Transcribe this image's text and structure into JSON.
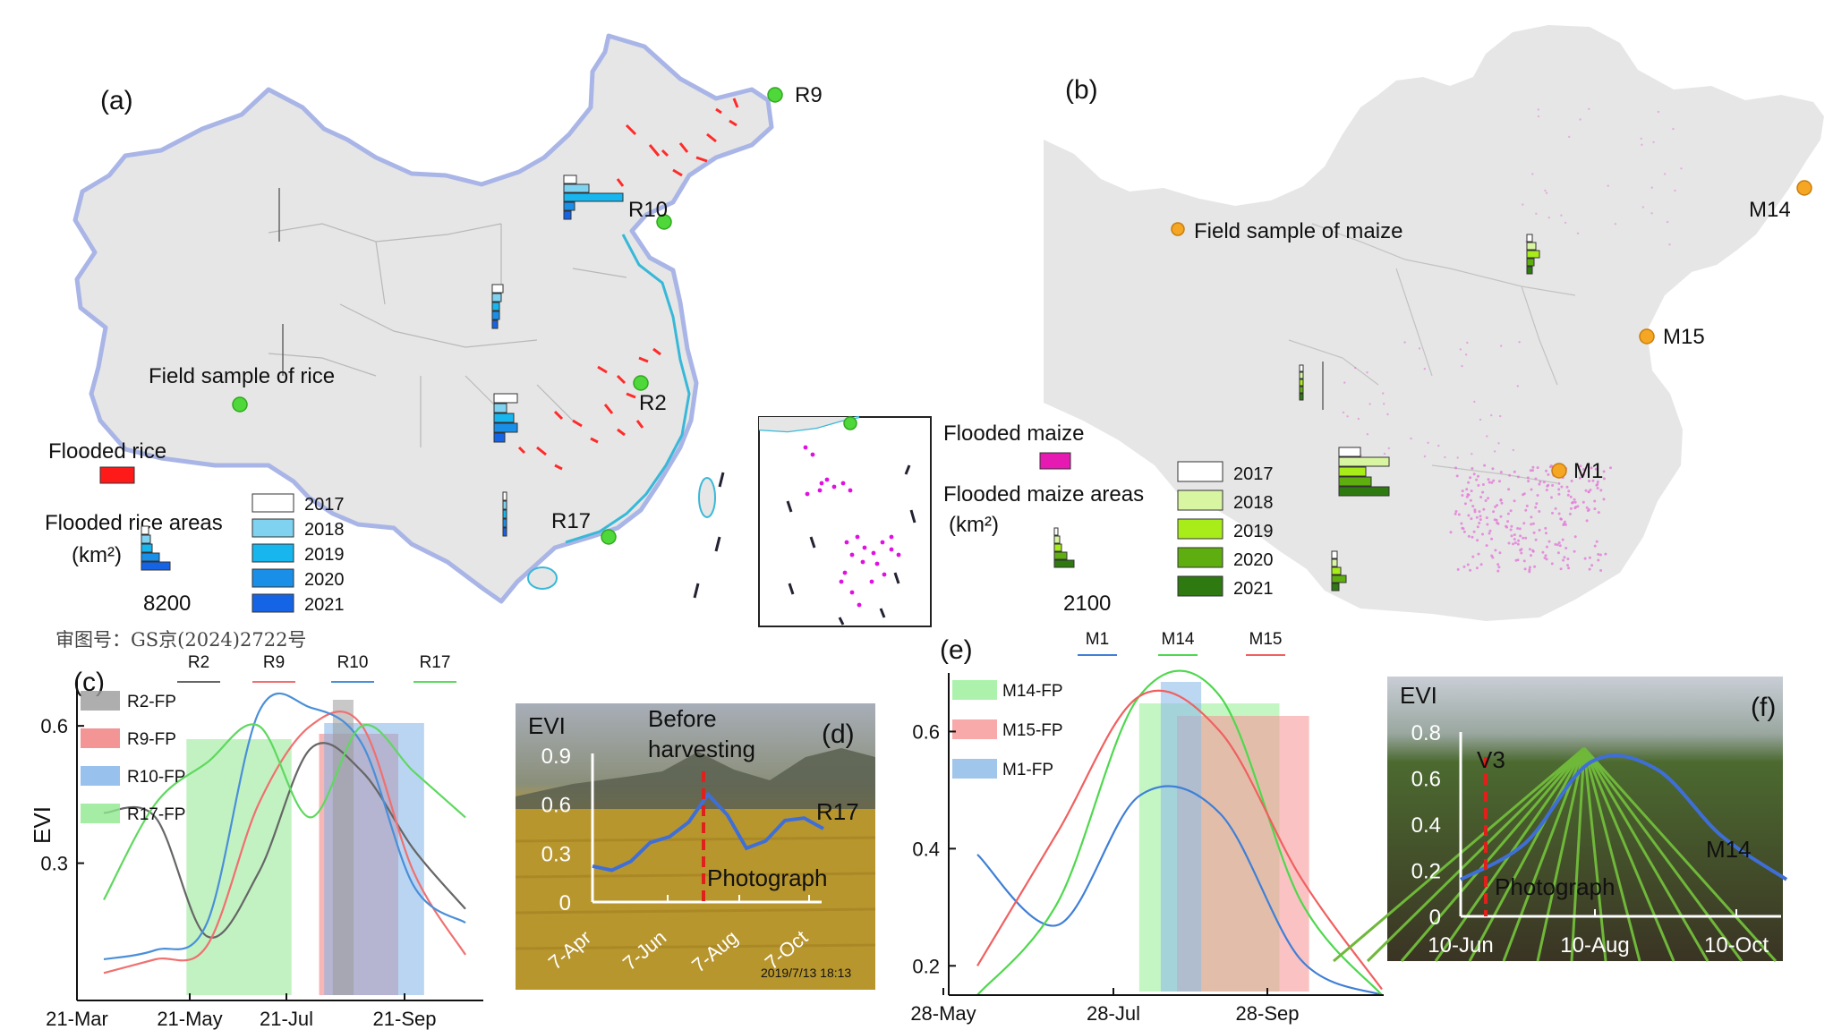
{
  "panel_a": {
    "label": "(a)",
    "sites": [
      "R9",
      "R10",
      "R2",
      "R17"
    ],
    "field_sample": "Field sample of rice",
    "legend_flooded": "Flooded rice",
    "legend_areas": "Flooded rice areas",
    "legend_unit": "(km²)",
    "scale_value": "8200",
    "years": [
      "2017",
      "2018",
      "2019",
      "2020",
      "2021"
    ],
    "year_colors": [
      "#ffffff",
      "#7fd3f0",
      "#17b6ef",
      "#1a8fe8",
      "#1564e6"
    ],
    "approval": "审图号：GS京(2024)2722号",
    "flooded_color": "#ff1a1a"
  },
  "panel_b": {
    "label": "(b)",
    "sites": [
      "M14",
      "M15",
      "M1"
    ],
    "field_sample": "Field sample of maize",
    "legend_flooded": "Flooded maize",
    "legend_areas": "Flooded maize areas",
    "legend_unit": "(km²)",
    "scale_value": "2100",
    "years": [
      "2017",
      "2018",
      "2019",
      "2020",
      "2021"
    ],
    "year_colors": [
      "#ffffff",
      "#d8f5a2",
      "#a8ec1a",
      "#5fae10",
      "#2e7a10"
    ],
    "flooded_color": "#e619b3"
  },
  "panel_c": {
    "label": "(c)",
    "ylabel": "EVI",
    "yticks": [
      "0.3",
      "0.6"
    ],
    "xticks": [
      "21-Mar",
      "21-May",
      "21-Jul",
      "21-Sep"
    ],
    "series": [
      {
        "name": "R2",
        "color": "#666666"
      },
      {
        "name": "R9",
        "color": "#f07070"
      },
      {
        "name": "R10",
        "color": "#4a8fd8"
      },
      {
        "name": "R17",
        "color": "#5fd85f"
      }
    ],
    "fp": [
      {
        "name": "R2-FP",
        "color": "#9a9a9a"
      },
      {
        "name": "R9-FP",
        "color": "#f07a7a"
      },
      {
        "name": "R10-FP",
        "color": "#7fb2e8"
      },
      {
        "name": "R17-FP",
        "color": "#8fe88f"
      }
    ]
  },
  "panel_d": {
    "label": "(d)",
    "axis": "EVI",
    "yticks": [
      "0",
      "0.3",
      "0.6",
      "0.9"
    ],
    "xticks": [
      "7-Apr",
      "7-Jun",
      "7-Aug",
      "7-Oct"
    ],
    "note": "Before harvesting",
    "note_line1": "Before",
    "note_line2": "harvesting",
    "marker": "Photograph",
    "site": "R17",
    "stamp": "2019/7/13  18:13"
  },
  "panel_e": {
    "label": "(e)",
    "yticks": [
      "0.2",
      "0.4",
      "0.6"
    ],
    "xticks": [
      "28-May",
      "28-Jul",
      "28-Sep"
    ],
    "series": [
      {
        "name": "M1",
        "color": "#3f7fd6"
      },
      {
        "name": "M14",
        "color": "#4ed84e"
      },
      {
        "name": "M15",
        "color": "#f06060"
      }
    ],
    "fp": [
      {
        "name": "M14-FP",
        "color": "#9df09d"
      },
      {
        "name": "M15-FP",
        "color": "#f79a9a"
      },
      {
        "name": "M1-FP",
        "color": "#8fbce8"
      }
    ]
  },
  "panel_f": {
    "label": "(f)",
    "axis": "EVI",
    "yticks": [
      "0",
      "0.2",
      "0.4",
      "0.6",
      "0.8"
    ],
    "xticks": [
      "10-Jun",
      "10-Aug",
      "10-Oct"
    ],
    "stage": "V3",
    "marker": "Photograph",
    "site": "M14"
  },
  "chart_data": [
    {
      "type": "line",
      "panel": "c",
      "ylabel": "EVI",
      "x": [
        "21-Mar",
        "21-Apr",
        "21-May",
        "21-Jun",
        "21-Jul",
        "21-Aug",
        "21-Sep",
        "21-Oct"
      ],
      "series": [
        {
          "name": "R2",
          "values": [
            0.41,
            0.4,
            0.14,
            0.28,
            0.55,
            0.5,
            0.33,
            0.2
          ]
        },
        {
          "name": "R9",
          "values": [
            0.06,
            0.09,
            0.12,
            0.43,
            0.6,
            0.6,
            0.28,
            0.1
          ]
        },
        {
          "name": "R10",
          "values": [
            0.09,
            0.11,
            0.17,
            0.63,
            0.64,
            0.56,
            0.25,
            0.17
          ]
        },
        {
          "name": "R17",
          "values": [
            0.22,
            0.43,
            0.52,
            0.6,
            0.4,
            0.6,
            0.5,
            0.4
          ]
        }
      ],
      "flood_periods": [
        {
          "name": "R17-FP",
          "from": "9-May",
          "to": "10-Jul"
        },
        {
          "name": "R9-FP",
          "from": "26-Jul",
          "to": "12-Sep"
        },
        {
          "name": "R10-FP",
          "from": "29-Jul",
          "to": "27-Sep"
        },
        {
          "name": "R2-FP",
          "from": "4-Aug",
          "to": "16-Aug"
        }
      ],
      "ylim": [
        0,
        0.7
      ]
    },
    {
      "type": "line",
      "panel": "d",
      "ylabel": "EVI",
      "x": [
        "7-Apr",
        "7-May",
        "7-Jun",
        "7-Jul",
        "7-Aug",
        "7-Sep",
        "7-Oct"
      ],
      "series": [
        {
          "name": "R17",
          "values": [
            0.22,
            0.25,
            0.4,
            0.66,
            0.33,
            0.5,
            0.45
          ]
        }
      ],
      "ylim": [
        0,
        0.9
      ]
    },
    {
      "type": "line",
      "panel": "e",
      "x": [
        "28-May",
        "28-Jun",
        "28-Jul",
        "28-Aug",
        "28-Sep",
        "28-Oct"
      ],
      "series": [
        {
          "name": "M1",
          "values": [
            0.39,
            0.27,
            0.49,
            0.46,
            0.21,
            0.15
          ]
        },
        {
          "name": "M14",
          "values": [
            0.15,
            0.31,
            0.66,
            0.66,
            0.31,
            0.15
          ]
        },
        {
          "name": "M15",
          "values": [
            0.2,
            0.43,
            0.66,
            0.6,
            0.35,
            0.16
          ]
        }
      ],
      "flood_periods": [
        {
          "name": "M14-FP",
          "from": "28-Jul",
          "to": "20-Sep"
        },
        {
          "name": "M15-FP",
          "from": "12-Aug",
          "to": "1-Oct"
        },
        {
          "name": "M1-FP",
          "from": "6-Aug",
          "to": "21-Aug"
        }
      ],
      "ylim": [
        0.15,
        0.7
      ]
    },
    {
      "type": "line",
      "panel": "f",
      "ylabel": "EVI",
      "x": [
        "10-Jun",
        "10-Jul",
        "10-Aug",
        "10-Sep",
        "10-Oct",
        "10-Nov"
      ],
      "series": [
        {
          "name": "M14",
          "values": [
            0.16,
            0.32,
            0.67,
            0.64,
            0.35,
            0.16
          ]
        }
      ],
      "ylim": [
        0,
        0.8
      ]
    }
  ]
}
